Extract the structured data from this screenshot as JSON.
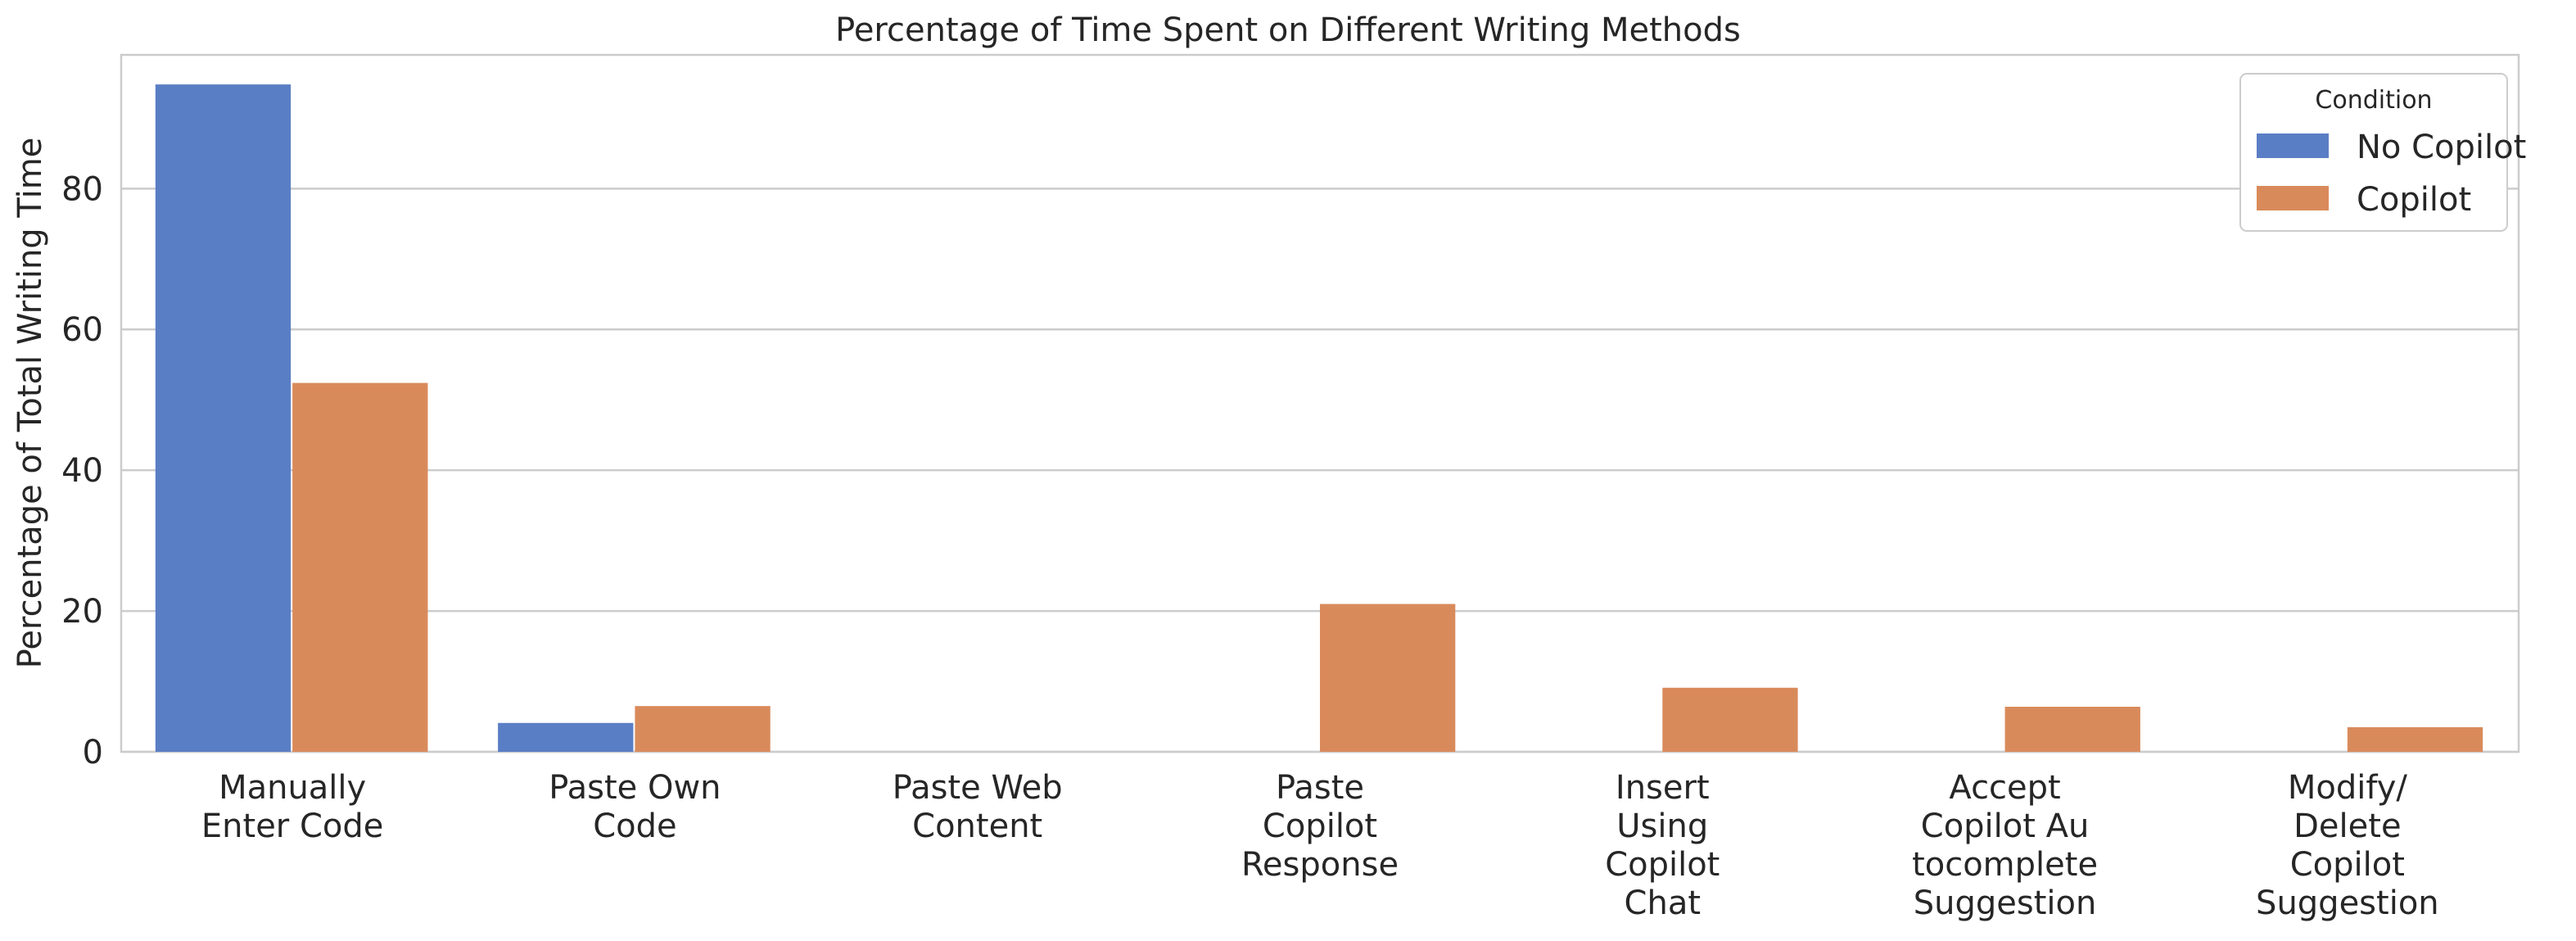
{
  "chart_data": {
    "type": "bar",
    "title": "Percentage of Time Spent on Different Writing Methods",
    "xlabel": "",
    "ylabel": "Percentage of Total Writing Time",
    "ylim": [
      0,
      99
    ],
    "yticks": [
      0,
      20,
      40,
      60,
      80
    ],
    "grid": true,
    "legend_position": "top-right",
    "legend_title": "Condition",
    "categories": [
      "Manually\nEnter Code",
      "Paste Own\nCode",
      "Paste Web\nContent",
      "Paste\nCopilot\nResponse",
      "Insert\nUsing\nCopilot\nChat",
      "Accept\nCopilot Au\ntocomplete\nSuggestion",
      "Modify/\nDelete\nCopilot\nSuggestion"
    ],
    "series": [
      {
        "name": "No Copilot",
        "color": "#5a7ec5",
        "values": [
          94.8,
          4.1,
          0,
          0,
          0,
          0,
          0
        ]
      },
      {
        "name": "Copilot",
        "color": "#d98a5b",
        "values": [
          52.4,
          6.5,
          0,
          21.0,
          9.1,
          6.4,
          3.5
        ]
      }
    ]
  }
}
